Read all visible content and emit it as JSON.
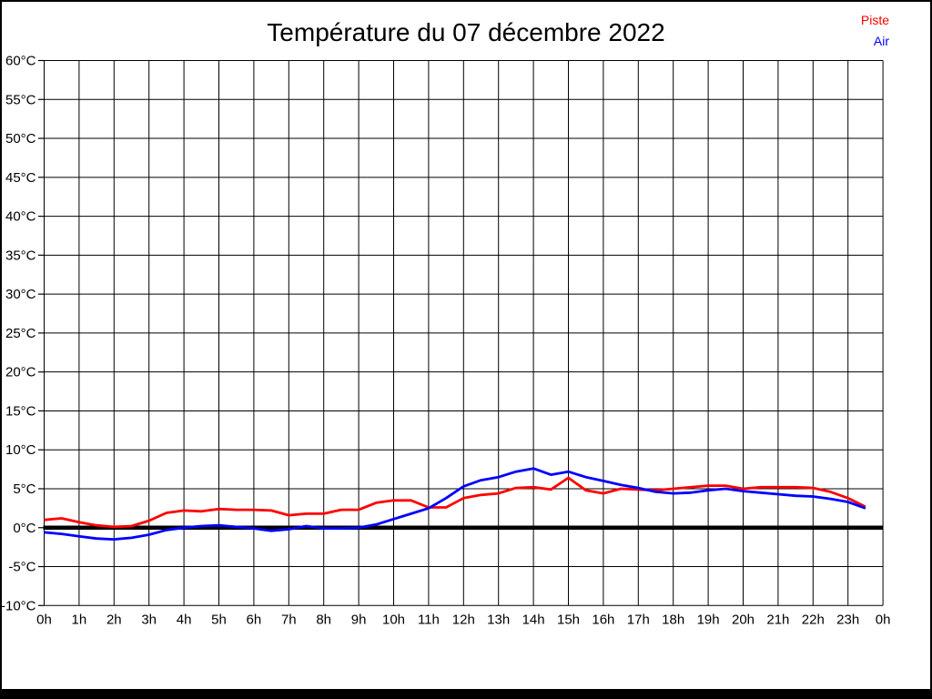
{
  "page": {
    "background_color": "#ffffff",
    "frame_color": "#000000"
  },
  "legend": {
    "items": [
      {
        "label": "Piste",
        "color": "#ff0000"
      },
      {
        "label": "Air",
        "color": "#0000ff"
      }
    ]
  },
  "chart_data": {
    "type": "line",
    "title": "Température du 07 décembre 2022",
    "xlabel": "",
    "ylabel": "",
    "x_unit": "h",
    "y_unit": "°C",
    "xlim": [
      0,
      24
    ],
    "ylim": [
      -10,
      60
    ],
    "grid": true,
    "grid_color": "#000000",
    "zero_line": {
      "value": 0,
      "color": "#000000"
    },
    "legend_position": "top-right",
    "x_tick_labels": [
      "0h",
      "1h",
      "2h",
      "3h",
      "4h",
      "5h",
      "6h",
      "7h",
      "8h",
      "9h",
      "10h",
      "11h",
      "12h",
      "13h",
      "14h",
      "15h",
      "16h",
      "17h",
      "18h",
      "19h",
      "20h",
      "21h",
      "22h",
      "23h",
      "0h"
    ],
    "y_tick_labels": [
      "60°C",
      "55°C",
      "50°C",
      "45°C",
      "40°C",
      "35°C",
      "30°C",
      "25°C",
      "20°C",
      "15°C",
      "10°C",
      "5°C",
      "0°C",
      "-5°C",
      "-10°C"
    ],
    "y_tick_values": [
      60,
      55,
      50,
      45,
      40,
      35,
      30,
      25,
      20,
      15,
      10,
      5,
      0,
      -5,
      -10
    ],
    "x": [
      0,
      0.5,
      1,
      1.5,
      2,
      2.5,
      3,
      3.5,
      4,
      4.5,
      5,
      5.5,
      6,
      6.5,
      7,
      7.5,
      8,
      8.5,
      9,
      9.5,
      10,
      10.5,
      11,
      11.5,
      12,
      12.5,
      13,
      13.5,
      14,
      14.5,
      15,
      15.5,
      16,
      16.5,
      17,
      17.5,
      18,
      18.5,
      19,
      19.5,
      20,
      20.5,
      21,
      21.5,
      22,
      22.5,
      23,
      23.5
    ],
    "series": [
      {
        "name": "Piste",
        "color": "#ff0000",
        "values": [
          1.0,
          1.2,
          0.7,
          0.3,
          0.1,
          0.2,
          0.9,
          1.9,
          2.2,
          2.1,
          2.4,
          2.3,
          2.3,
          2.2,
          1.6,
          1.8,
          1.8,
          2.3,
          2.3,
          3.2,
          3.5,
          3.5,
          2.6,
          2.6,
          3.8,
          4.2,
          4.4,
          5.1,
          5.2,
          4.9,
          6.4,
          4.8,
          4.4,
          5.0,
          4.9,
          4.8,
          5.0,
          5.2,
          5.4,
          5.4,
          5.0,
          5.2,
          5.2,
          5.2,
          5.1,
          4.6,
          3.8,
          2.7
        ]
      },
      {
        "name": "Air",
        "color": "#0000ff",
        "values": [
          -0.6,
          -0.8,
          -1.1,
          -1.4,
          -1.5,
          -1.3,
          -0.9,
          -0.3,
          0.0,
          0.2,
          0.3,
          0.1,
          -0.1,
          -0.4,
          -0.2,
          0.2,
          -0.1,
          -0.1,
          0.0,
          0.4,
          1.1,
          1.8,
          2.5,
          3.8,
          5.3,
          6.1,
          6.5,
          7.2,
          7.6,
          6.8,
          7.2,
          6.5,
          6.0,
          5.5,
          5.1,
          4.6,
          4.4,
          4.5,
          4.8,
          5.0,
          4.7,
          4.5,
          4.3,
          4.1,
          4.0,
          3.7,
          3.3,
          2.5
        ]
      }
    ]
  }
}
